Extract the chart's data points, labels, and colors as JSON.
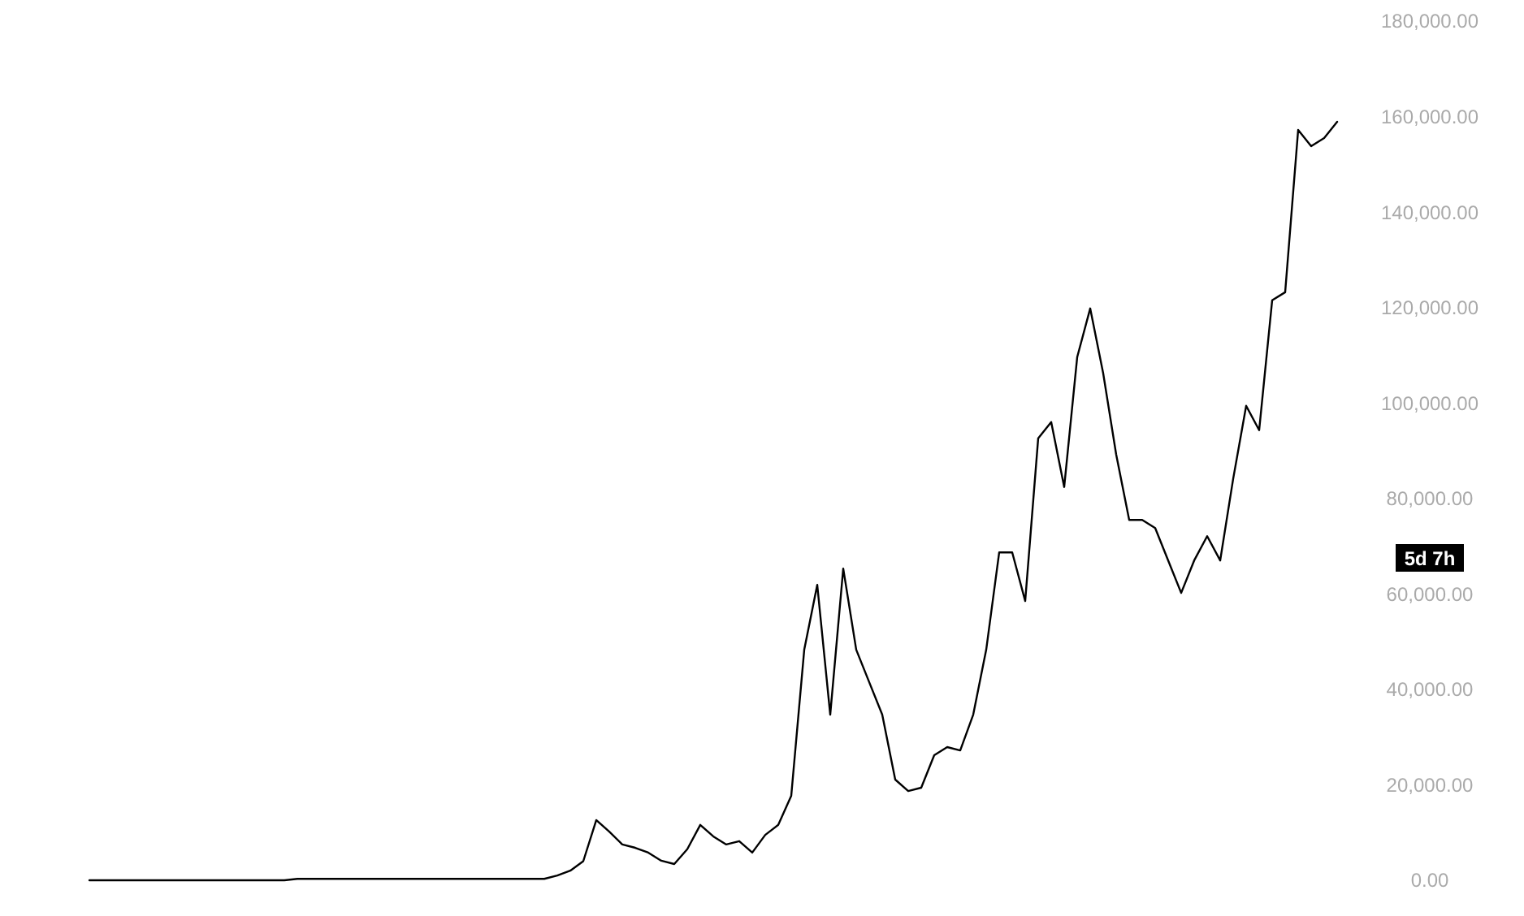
{
  "chart_data": {
    "type": "line",
    "categories": [
      null,
      null,
      null,
      null,
      null,
      null,
      null,
      null,
      null,
      null,
      null,
      null,
      null,
      null,
      null,
      null,
      null,
      null,
      null,
      null,
      null,
      null,
      null,
      null,
      null,
      null,
      null,
      null,
      null,
      null,
      null,
      null,
      null,
      null,
      null,
      null,
      null,
      null,
      null,
      null,
      null,
      null,
      null,
      null,
      null,
      null,
      null,
      null,
      null,
      null,
      null,
      null,
      null,
      null,
      null,
      null,
      null,
      null,
      null,
      null,
      null,
      null,
      null,
      null,
      null,
      null,
      null,
      null,
      null,
      null,
      null,
      null,
      null,
      null,
      null,
      null,
      null,
      null,
      null,
      null,
      null,
      null,
      null,
      null,
      null,
      null,
      null,
      null,
      null,
      null,
      null,
      null,
      null,
      null,
      null,
      null,
      null
    ],
    "series": [
      {
        "color": "#000000",
        "values": [
          0,
          0,
          0,
          0,
          0,
          0,
          0,
          0,
          0,
          0,
          0,
          0,
          0,
          0,
          0,
          0,
          300,
          300,
          300,
          300,
          300,
          300,
          300,
          300,
          300,
          300,
          300,
          300,
          300,
          300,
          300,
          300,
          300,
          300,
          300,
          300,
          1000,
          2000,
          4000,
          12600,
          10200,
          7500,
          6800,
          5800,
          4100,
          3400,
          6500,
          11600,
          9200,
          7500,
          8200,
          5800,
          9500,
          11600,
          17700,
          48300,
          61900,
          34700,
          65300,
          48300,
          41500,
          34700,
          21100,
          18700,
          19400,
          26200,
          27900,
          27200,
          34700,
          48300,
          68700,
          68700,
          58500,
          92600,
          96000,
          82400,
          109600,
          119800,
          106200,
          89200,
          75500,
          75500,
          73800,
          67000,
          60200,
          67000,
          72100,
          67000,
          84100,
          99400,
          94300,
          121500,
          123200,
          157200,
          153800,
          155500,
          158900
        ]
      }
    ],
    "ylim": [
      0,
      180000
    ],
    "yticks": [
      {
        "value": 0,
        "label": "0.00"
      },
      {
        "value": 20000,
        "label": "20,000.00"
      },
      {
        "value": 40000,
        "label": "40,000.00"
      },
      {
        "value": 60000,
        "label": "60,000.00"
      },
      {
        "value": 80000,
        "label": "80,000.00"
      },
      {
        "value": 100000,
        "label": "100,000.00"
      },
      {
        "value": 120000,
        "label": "120,000.00"
      },
      {
        "value": 140000,
        "label": "140,000.00"
      },
      {
        "value": 160000,
        "label": "160,000.00"
      },
      {
        "value": 180000,
        "label": "180,000.00"
      }
    ],
    "annotations": [
      "5d 7h"
    ]
  }
}
